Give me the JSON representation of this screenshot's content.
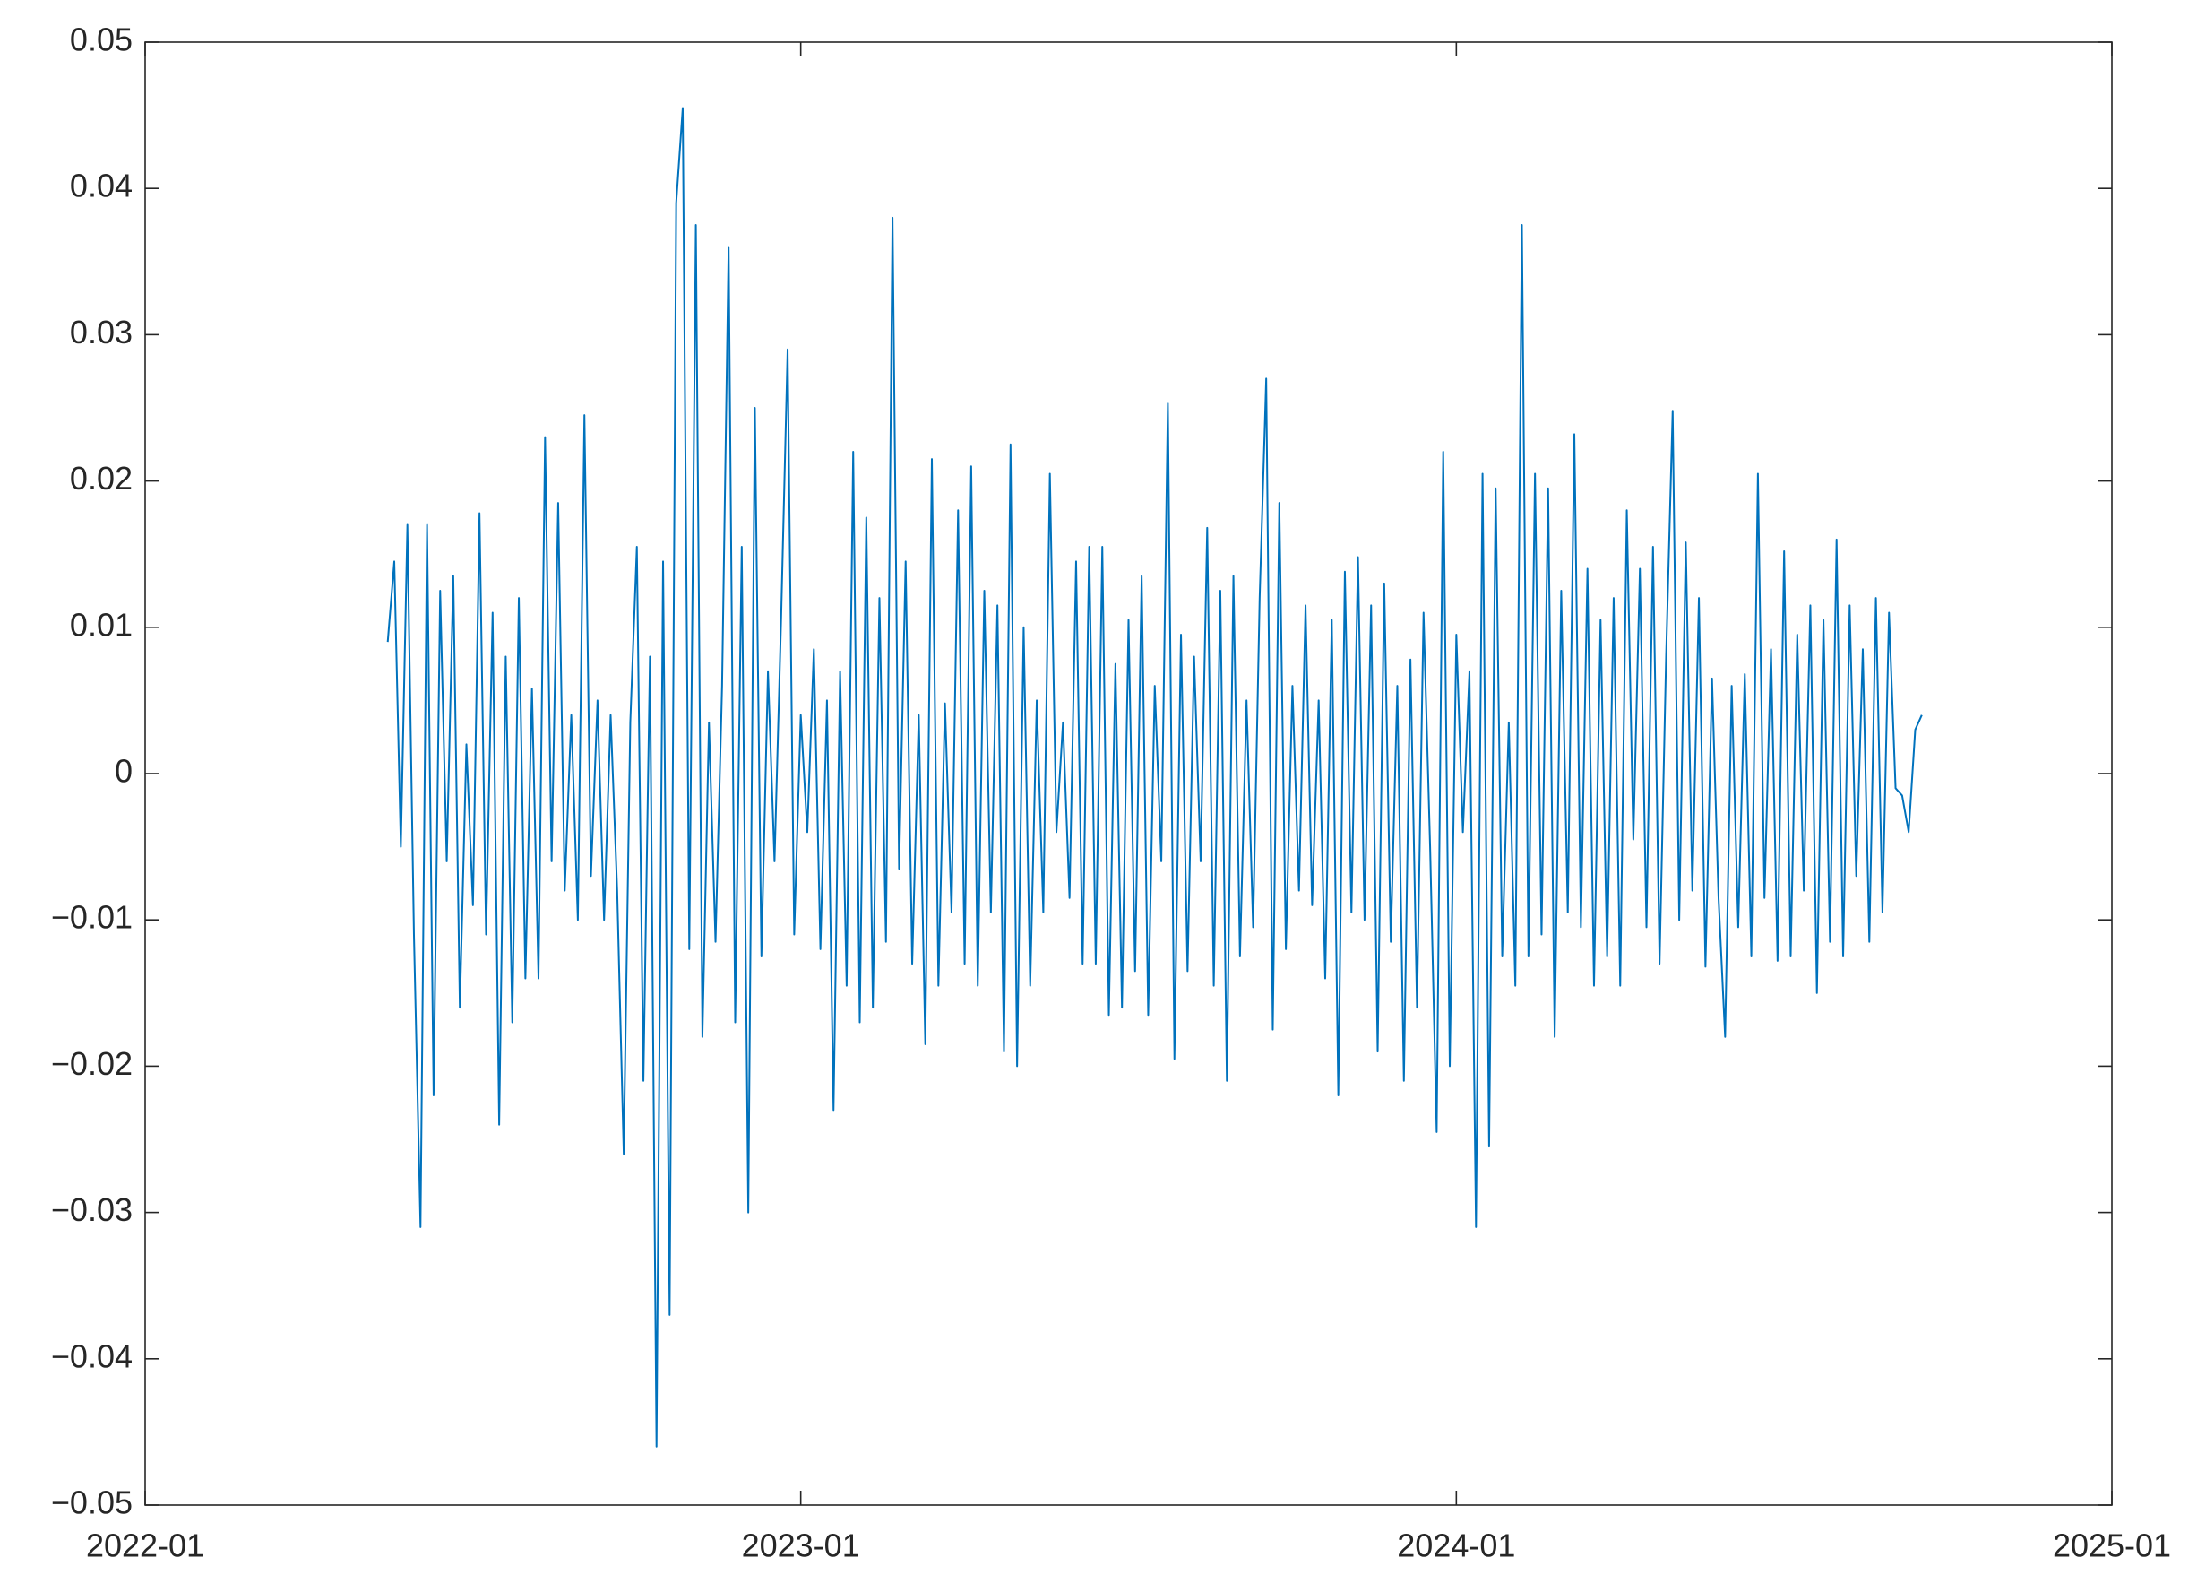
{
  "chart_data": {
    "type": "line",
    "x": [
      2022.37,
      2022.38,
      2022.39,
      2022.4,
      2022.41,
      2022.42,
      2022.43,
      2022.44,
      2022.45,
      2022.46,
      2022.47,
      2022.48,
      2022.49,
      2022.5,
      2022.51,
      2022.52,
      2022.53,
      2022.54,
      2022.55,
      2022.56,
      2022.57,
      2022.58,
      2022.59,
      2022.6,
      2022.61,
      2022.62,
      2022.63,
      2022.64,
      2022.65,
      2022.66,
      2022.67,
      2022.68,
      2022.69,
      2022.7,
      2022.71,
      2022.72,
      2022.73,
      2022.74,
      2022.75,
      2022.76,
      2022.77,
      2022.78,
      2022.79,
      2022.8,
      2022.81,
      2022.82,
      2022.83,
      2022.84,
      2022.85,
      2022.86,
      2022.87,
      2022.88,
      2022.89,
      2022.9,
      2022.91,
      2022.92,
      2022.93,
      2022.94,
      2022.95,
      2022.96,
      2022.97,
      2022.98,
      2022.99,
      2023.0,
      2023.01,
      2023.02,
      2023.03,
      2023.04,
      2023.05,
      2023.06,
      2023.07,
      2023.08,
      2023.09,
      2023.1,
      2023.11,
      2023.12,
      2023.13,
      2023.14,
      2023.15,
      2023.16,
      2023.17,
      2023.18,
      2023.19,
      2023.2,
      2023.21,
      2023.22,
      2023.23,
      2023.24,
      2023.25,
      2023.26,
      2023.27,
      2023.28,
      2023.29,
      2023.3,
      2023.31,
      2023.32,
      2023.33,
      2023.34,
      2023.35,
      2023.36,
      2023.37,
      2023.38,
      2023.39,
      2023.4,
      2023.41,
      2023.42,
      2023.43,
      2023.44,
      2023.45,
      2023.46,
      2023.47,
      2023.48,
      2023.49,
      2023.5,
      2023.51,
      2023.52,
      2023.53,
      2023.54,
      2023.55,
      2023.56,
      2023.57,
      2023.58,
      2023.59,
      2023.6,
      2023.61,
      2023.62,
      2023.63,
      2023.64,
      2023.65,
      2023.66,
      2023.67,
      2023.68,
      2023.69,
      2023.7,
      2023.71,
      2023.72,
      2023.73,
      2023.74,
      2023.75,
      2023.76,
      2023.77,
      2023.78,
      2023.79,
      2023.8,
      2023.81,
      2023.82,
      2023.83,
      2023.84,
      2023.85,
      2023.86,
      2023.87,
      2023.88,
      2023.89,
      2023.9,
      2023.91,
      2023.92,
      2023.93,
      2023.94,
      2023.95,
      2023.96,
      2023.97,
      2023.98,
      2023.99,
      2024.0,
      2024.01,
      2024.02,
      2024.03,
      2024.04,
      2024.05,
      2024.06,
      2024.07,
      2024.08,
      2024.09,
      2024.1,
      2024.11,
      2024.12,
      2024.13,
      2024.14,
      2024.15,
      2024.16,
      2024.17,
      2024.18,
      2024.19,
      2024.2,
      2024.21,
      2024.22,
      2024.23,
      2024.24,
      2024.25,
      2024.26,
      2024.27,
      2024.28,
      2024.29,
      2024.3,
      2024.31,
      2024.32,
      2024.33,
      2024.34,
      2024.35,
      2024.36,
      2024.37,
      2024.38,
      2024.39,
      2024.4,
      2024.41,
      2024.42,
      2024.43,
      2024.44,
      2024.45,
      2024.46,
      2024.47,
      2024.48,
      2024.49,
      2024.5,
      2024.51,
      2024.52,
      2024.53,
      2024.54,
      2024.55,
      2024.56,
      2024.57,
      2024.58,
      2024.59,
      2024.6,
      2024.61,
      2024.62,
      2024.63,
      2024.64,
      2024.65,
      2024.66,
      2024.67,
      2024.68,
      2024.69,
      2024.7,
      2024.71
    ],
    "series": [
      {
        "color": "#0072bd",
        "values": [
          0.009,
          0.0145,
          -0.005,
          0.017,
          -0.011,
          -0.031,
          0.017,
          -0.022,
          0.0125,
          -0.006,
          0.0135,
          -0.016,
          0.002,
          -0.009,
          0.0178,
          -0.011,
          0.011,
          -0.024,
          0.008,
          -0.017,
          0.012,
          -0.014,
          0.0058,
          -0.014,
          0.023,
          -0.006,
          0.0185,
          -0.008,
          0.004,
          -0.01,
          0.0245,
          -0.007,
          0.005,
          -0.01,
          0.004,
          -0.008,
          -0.026,
          0.0035,
          0.0155,
          -0.021,
          0.008,
          -0.046,
          0.0145,
          -0.037,
          0.039,
          0.0455,
          -0.012,
          0.0375,
          -0.018,
          0.0035,
          -0.0115,
          0.006,
          0.036,
          -0.017,
          0.0155,
          -0.03,
          0.025,
          -0.0125,
          0.007,
          -0.006,
          0.0105,
          0.029,
          -0.011,
          0.004,
          -0.004,
          0.0085,
          -0.012,
          0.005,
          -0.023,
          0.007,
          -0.0145,
          0.022,
          -0.017,
          0.0175,
          -0.016,
          0.012,
          -0.0115,
          0.038,
          -0.0065,
          0.0145,
          -0.013,
          0.004,
          -0.0185,
          0.0215,
          -0.0145,
          0.0048,
          -0.0095,
          0.018,
          -0.013,
          0.021,
          -0.0145,
          0.0125,
          -0.0095,
          0.0115,
          -0.019,
          0.0225,
          -0.02,
          0.01,
          -0.0145,
          0.005,
          -0.0095,
          0.0205,
          -0.004,
          0.0035,
          -0.0085,
          0.0145,
          -0.013,
          0.0155,
          -0.013,
          0.0155,
          -0.0165,
          0.0075,
          -0.016,
          0.0105,
          -0.0135,
          0.0135,
          -0.0165,
          0.006,
          -0.006,
          0.0253,
          -0.0195,
          0.0095,
          -0.0135,
          0.008,
          -0.006,
          0.0168,
          -0.0145,
          0.0125,
          -0.021,
          0.0135,
          -0.0125,
          0.005,
          -0.0105,
          0.012,
          0.027,
          -0.0175,
          0.0185,
          -0.012,
          0.006,
          -0.008,
          0.0115,
          -0.009,
          0.005,
          -0.014,
          0.0105,
          -0.022,
          0.0138,
          -0.0095,
          0.0148,
          -0.01,
          0.0115,
          -0.019,
          0.013,
          -0.0115,
          0.006,
          -0.021,
          0.0078,
          -0.016,
          0.011,
          -0.005,
          -0.0245,
          0.022,
          -0.02,
          0.0095,
          -0.004,
          0.007,
          -0.031,
          0.0205,
          -0.0255,
          0.0195,
          -0.0125,
          0.0035,
          -0.0145,
          0.0375,
          -0.0125,
          0.0205,
          -0.011,
          0.0195,
          -0.018,
          0.0125,
          -0.0095,
          0.0232,
          -0.0105,
          0.014,
          -0.0145,
          0.0105,
          -0.0125,
          0.012,
          -0.0145,
          0.018,
          -0.0045,
          0.014,
          -0.0105,
          0.0155,
          -0.013,
          0.008,
          0.0248,
          -0.01,
          0.0158,
          -0.008,
          0.012,
          -0.0132,
          0.0065,
          -0.0085,
          -0.018,
          0.006,
          -0.0105,
          0.0068,
          -0.0125,
          0.0205,
          -0.0085,
          0.0085,
          -0.0128,
          0.0152,
          -0.0125,
          0.0095,
          -0.008,
          0.0115,
          -0.015,
          0.0105,
          -0.0115,
          0.016,
          -0.0125,
          0.0115,
          -0.007,
          0.0085,
          -0.0115,
          0.012,
          -0.0095,
          0.011,
          -0.001,
          -0.0015,
          -0.004,
          0.003,
          0.004
        ]
      }
    ],
    "xlim": [
      2022,
      2025
    ],
    "xticks": [
      {
        "value": 2022,
        "label": "2022-01"
      },
      {
        "value": 2023,
        "label": "2023-01"
      },
      {
        "value": 2024,
        "label": "2024-01"
      },
      {
        "value": 2025,
        "label": "2025-01"
      }
    ],
    "ylim": [
      -0.05,
      0.05
    ],
    "yticks": [
      -0.05,
      -0.04,
      -0.03,
      -0.02,
      -0.01,
      0,
      0.01,
      0.02,
      0.03,
      0.04,
      0.05
    ],
    "ytick_labels_override": null
  }
}
